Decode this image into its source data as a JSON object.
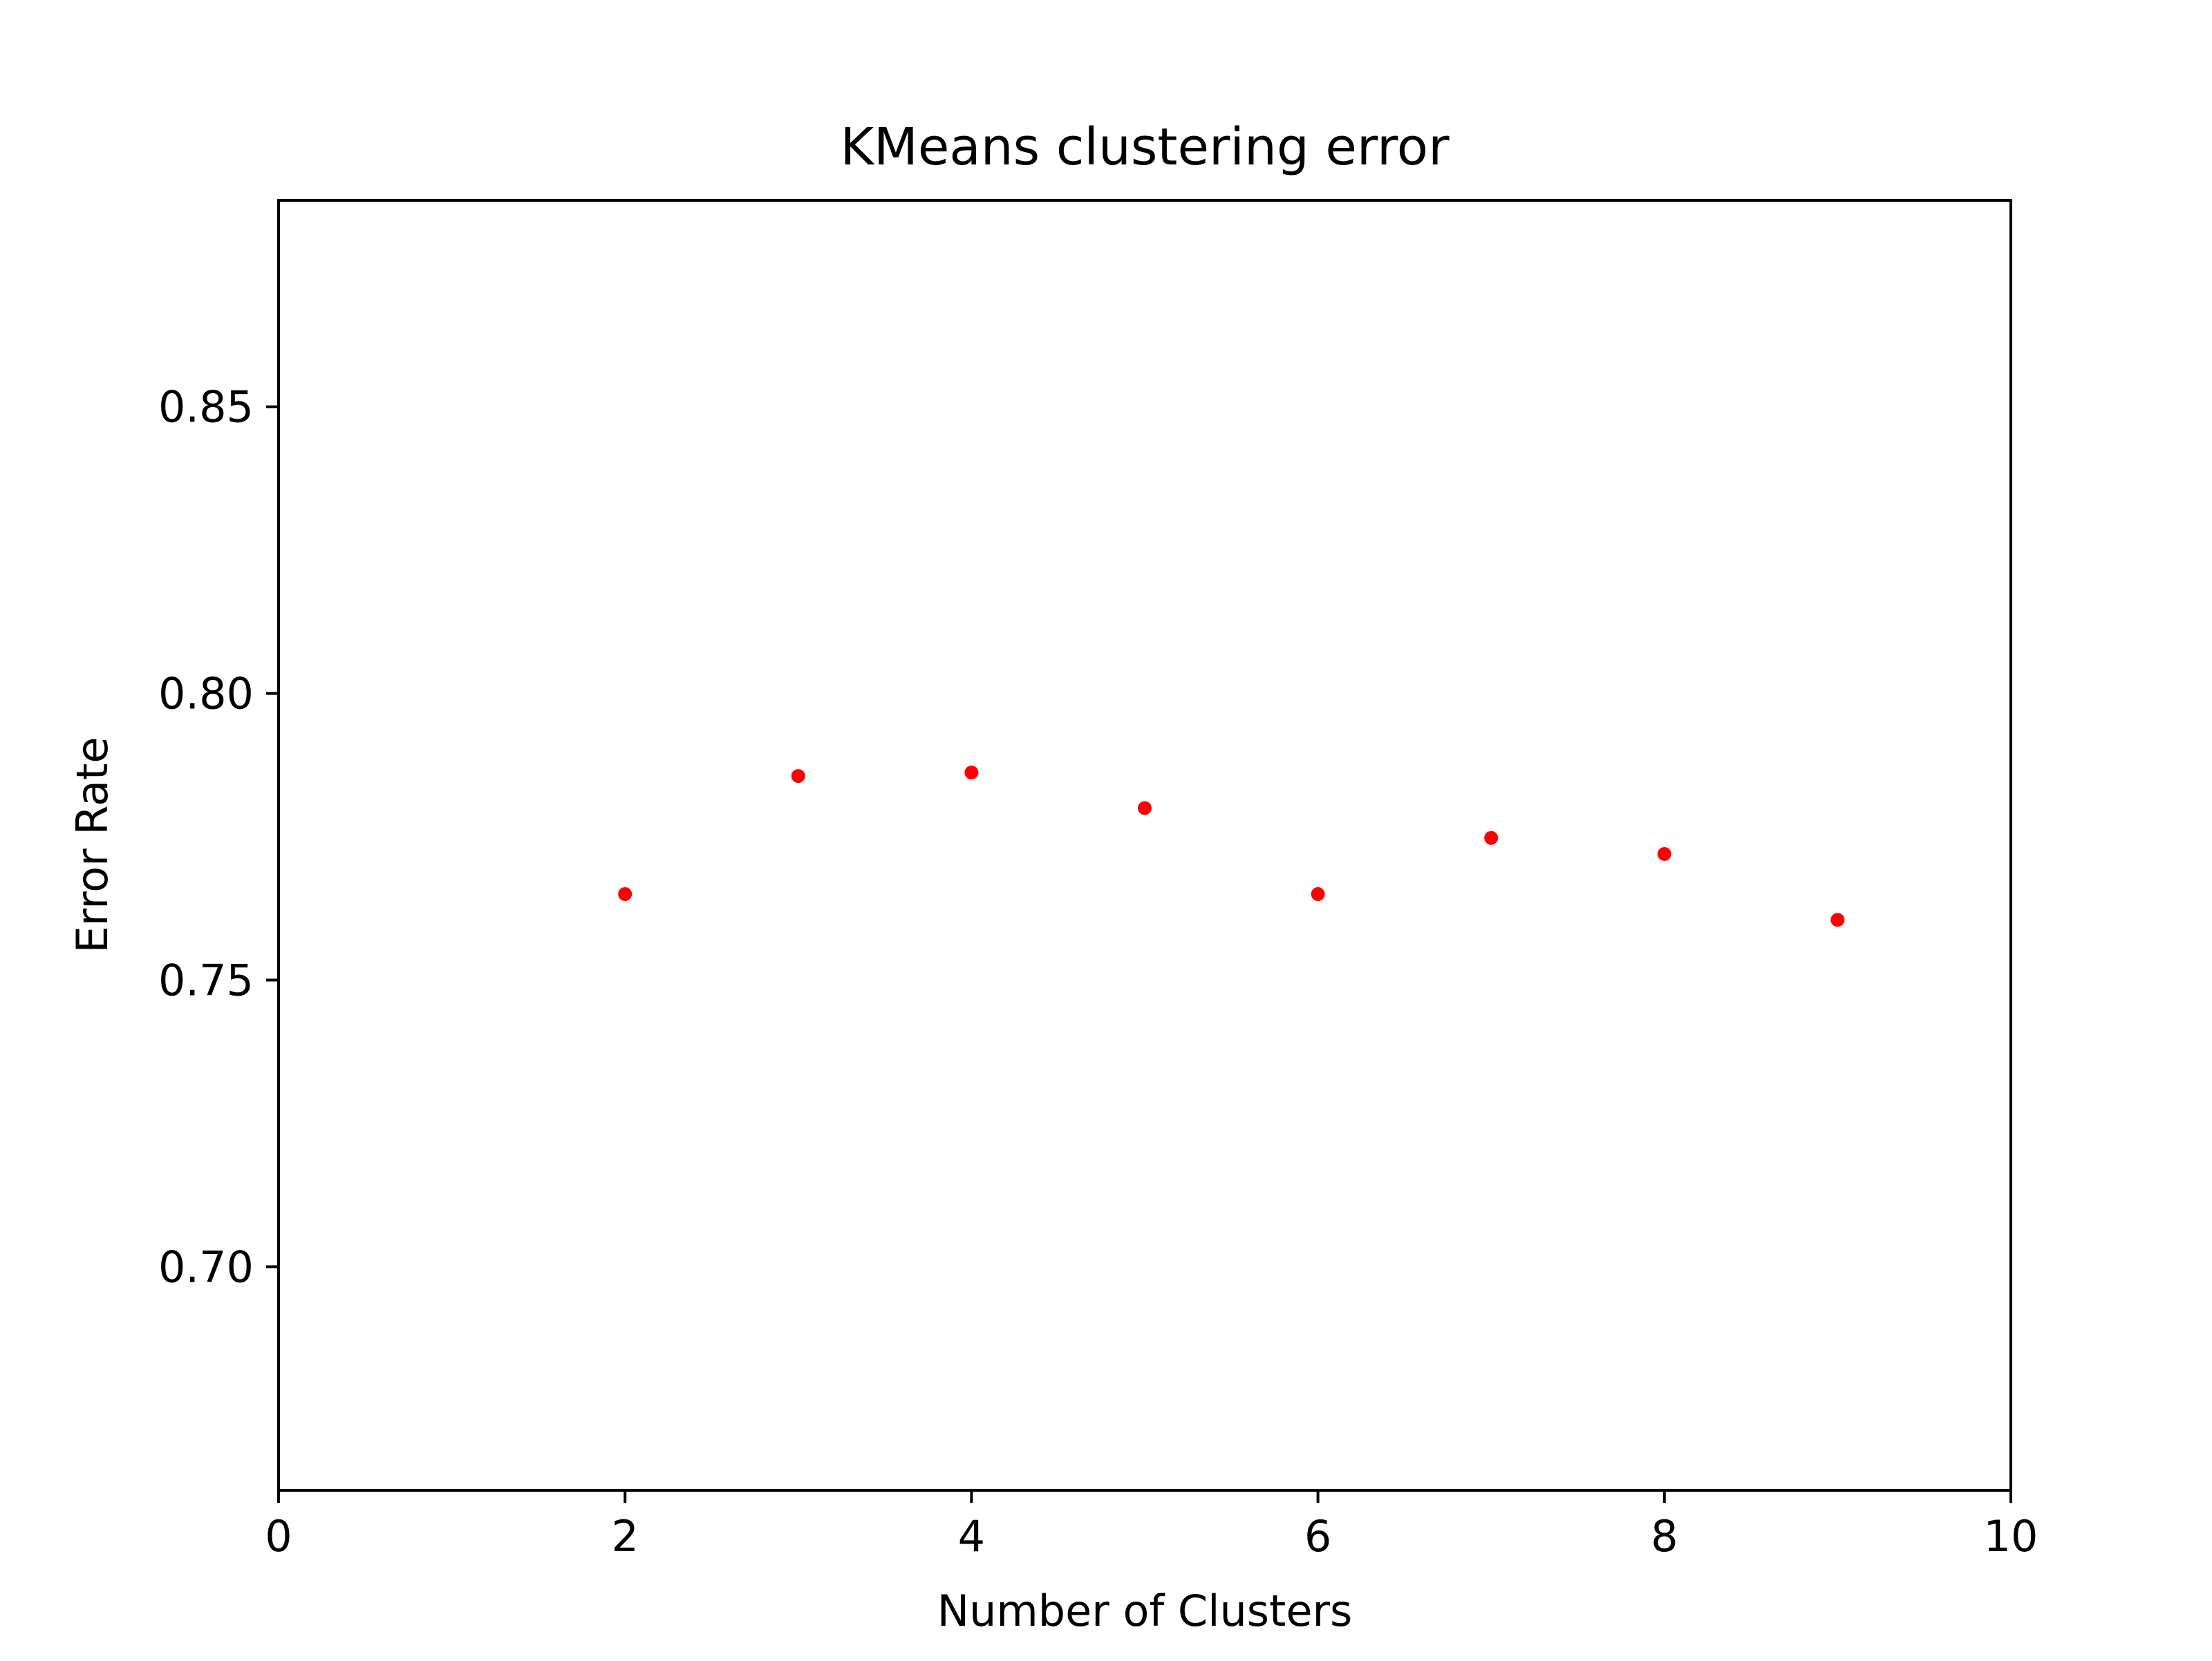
{
  "chart_data": {
    "type": "scatter",
    "title": "KMeans clustering error",
    "xlabel": "Number of Clusters",
    "ylabel": "Error Rate",
    "xlim": [
      0,
      10
    ],
    "ylim": [
      0.661,
      0.886
    ],
    "x_ticks": [
      0,
      2,
      4,
      6,
      8,
      10
    ],
    "y_ticks": [
      0.7,
      0.75,
      0.8,
      0.85
    ],
    "x_tick_labels": [
      "0",
      "2",
      "4",
      "6",
      "8",
      "10"
    ],
    "y_tick_labels": [
      "0.70",
      "0.75",
      "0.80",
      "0.85"
    ],
    "grid": false,
    "legend": "none",
    "marker_color": "#ff0000",
    "series": [
      {
        "x": [
          2,
          3,
          4,
          5,
          6,
          7,
          8,
          9
        ],
        "y": [
          0.765,
          0.7856,
          0.7862,
          0.78,
          0.765,
          0.7748,
          0.772,
          0.7605
        ]
      }
    ]
  }
}
